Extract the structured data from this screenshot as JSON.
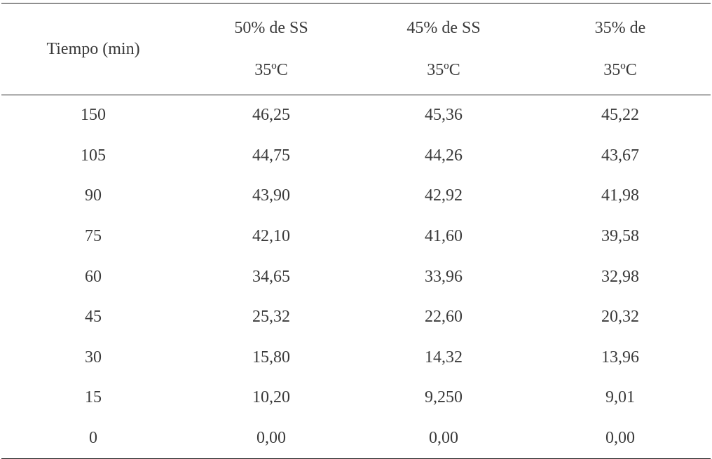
{
  "table": {
    "headers": {
      "time": "Tiempo (min)",
      "columns": [
        {
          "line1": "50% de SS",
          "line2": "35ºC"
        },
        {
          "line1": "45% de SS",
          "line2": "35ºC"
        },
        {
          "line1": "35% de",
          "line2": "35ºC"
        }
      ]
    },
    "rows": [
      {
        "time": "150",
        "v": [
          "46,25",
          "45,36",
          "45,22"
        ]
      },
      {
        "time": "105",
        "v": [
          "44,75",
          "44,26",
          "43,67"
        ]
      },
      {
        "time": "90",
        "v": [
          "43,90",
          "42,92",
          "41,98"
        ]
      },
      {
        "time": "75",
        "v": [
          "42,10",
          "41,60",
          "39,58"
        ]
      },
      {
        "time": "60",
        "v": [
          "34,65",
          "33,96",
          "32,98"
        ]
      },
      {
        "time": "45",
        "v": [
          "25,32",
          "22,60",
          "20,32"
        ]
      },
      {
        "time": "30",
        "v": [
          "15,80",
          "14,32",
          "13,96"
        ]
      },
      {
        "time": "15",
        "v": [
          "10,20",
          "9,250",
          "9,01"
        ]
      },
      {
        "time": "0",
        "v": [
          "0,00",
          "0,00",
          "0,00"
        ]
      }
    ]
  }
}
